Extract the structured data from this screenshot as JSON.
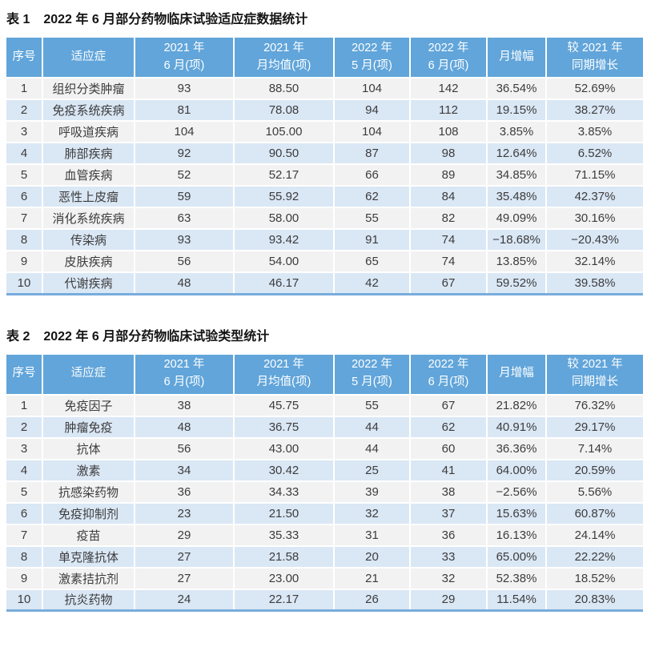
{
  "colors": {
    "header_bg": "#61A5DA",
    "row_odd_bg": "#F2F2F2",
    "row_even_bg": "#DAE7F5",
    "table_bottom_border": "#79ACDC",
    "header_text": "#FFFFFF",
    "body_text": "#3C3C3C",
    "title_text": "#141414"
  },
  "tables": [
    {
      "label": "表 1",
      "title": "2022 年 6 月部分药物临床试验适应症数据统计",
      "columns": [
        {
          "id": "index",
          "lines": [
            "序号"
          ]
        },
        {
          "id": "indication",
          "lines": [
            "适应症"
          ]
        },
        {
          "id": "jun-2021",
          "lines": [
            "2021 年",
            "6 月(项)"
          ]
        },
        {
          "id": "avg-2021",
          "lines": [
            "2021 年",
            "月均值(项)"
          ]
        },
        {
          "id": "may-2022",
          "lines": [
            "2022 年",
            "5 月(项)"
          ]
        },
        {
          "id": "jun-2022",
          "lines": [
            "2022 年",
            "6 月(项)"
          ]
        },
        {
          "id": "mom-growth",
          "lines": [
            "月增幅"
          ]
        },
        {
          "id": "yoy-growth",
          "lines": [
            "较 2021 年",
            "同期增长"
          ]
        }
      ],
      "rows": [
        [
          "1",
          "组织分类肿瘤",
          "93",
          "88.50",
          "104",
          "142",
          "36.54%",
          "52.69%"
        ],
        [
          "2",
          "免疫系统疾病",
          "81",
          "78.08",
          "94",
          "112",
          "19.15%",
          "38.27%"
        ],
        [
          "3",
          "呼吸道疾病",
          "104",
          "105.00",
          "104",
          "108",
          "3.85%",
          "3.85%"
        ],
        [
          "4",
          "肺部疾病",
          "92",
          "90.50",
          "87",
          "98",
          "12.64%",
          "6.52%"
        ],
        [
          "5",
          "血管疾病",
          "52",
          "52.17",
          "66",
          "89",
          "34.85%",
          "71.15%"
        ],
        [
          "6",
          "恶性上皮瘤",
          "59",
          "55.92",
          "62",
          "84",
          "35.48%",
          "42.37%"
        ],
        [
          "7",
          "消化系统疾病",
          "63",
          "58.00",
          "55",
          "82",
          "49.09%",
          "30.16%"
        ],
        [
          "8",
          "传染病",
          "93",
          "93.42",
          "91",
          "74",
          "−18.68%",
          "−20.43%"
        ],
        [
          "9",
          "皮肤疾病",
          "56",
          "54.00",
          "65",
          "74",
          "13.85%",
          "32.14%"
        ],
        [
          "10",
          "代谢疾病",
          "48",
          "46.17",
          "42",
          "67",
          "59.52%",
          "39.58%"
        ]
      ]
    },
    {
      "label": "表 2",
      "title": "2022 年 6 月部分药物临床试验类型统计",
      "columns": [
        {
          "id": "index",
          "lines": [
            "序号"
          ]
        },
        {
          "id": "indication",
          "lines": [
            "适应症"
          ]
        },
        {
          "id": "jun-2021",
          "lines": [
            "2021 年",
            "6 月(项)"
          ]
        },
        {
          "id": "avg-2021",
          "lines": [
            "2021 年",
            "月均值(项)"
          ]
        },
        {
          "id": "may-2022",
          "lines": [
            "2022 年",
            "5 月(项)"
          ]
        },
        {
          "id": "jun-2022",
          "lines": [
            "2022 年",
            "6 月(项)"
          ]
        },
        {
          "id": "mom-growth",
          "lines": [
            "月增幅"
          ]
        },
        {
          "id": "yoy-growth",
          "lines": [
            "较 2021 年",
            "同期增长"
          ]
        }
      ],
      "rows": [
        [
          "1",
          "免疫因子",
          "38",
          "45.75",
          "55",
          "67",
          "21.82%",
          "76.32%"
        ],
        [
          "2",
          "肿瘤免疫",
          "48",
          "36.75",
          "44",
          "62",
          "40.91%",
          "29.17%"
        ],
        [
          "3",
          "抗体",
          "56",
          "43.00",
          "44",
          "60",
          "36.36%",
          "7.14%"
        ],
        [
          "4",
          "激素",
          "34",
          "30.42",
          "25",
          "41",
          "64.00%",
          "20.59%"
        ],
        [
          "5",
          "抗感染药物",
          "36",
          "34.33",
          "39",
          "38",
          "−2.56%",
          "5.56%"
        ],
        [
          "6",
          "免疫抑制剂",
          "23",
          "21.50",
          "32",
          "37",
          "15.63%",
          "60.87%"
        ],
        [
          "7",
          "疫苗",
          "29",
          "35.33",
          "31",
          "36",
          "16.13%",
          "24.14%"
        ],
        [
          "8",
          "单克隆抗体",
          "27",
          "21.58",
          "20",
          "33",
          "65.00%",
          "22.22%"
        ],
        [
          "9",
          "激素拮抗剂",
          "27",
          "23.00",
          "21",
          "32",
          "52.38%",
          "18.52%"
        ],
        [
          "10",
          "抗炎药物",
          "24",
          "22.17",
          "26",
          "29",
          "11.54%",
          "20.83%"
        ]
      ]
    }
  ]
}
